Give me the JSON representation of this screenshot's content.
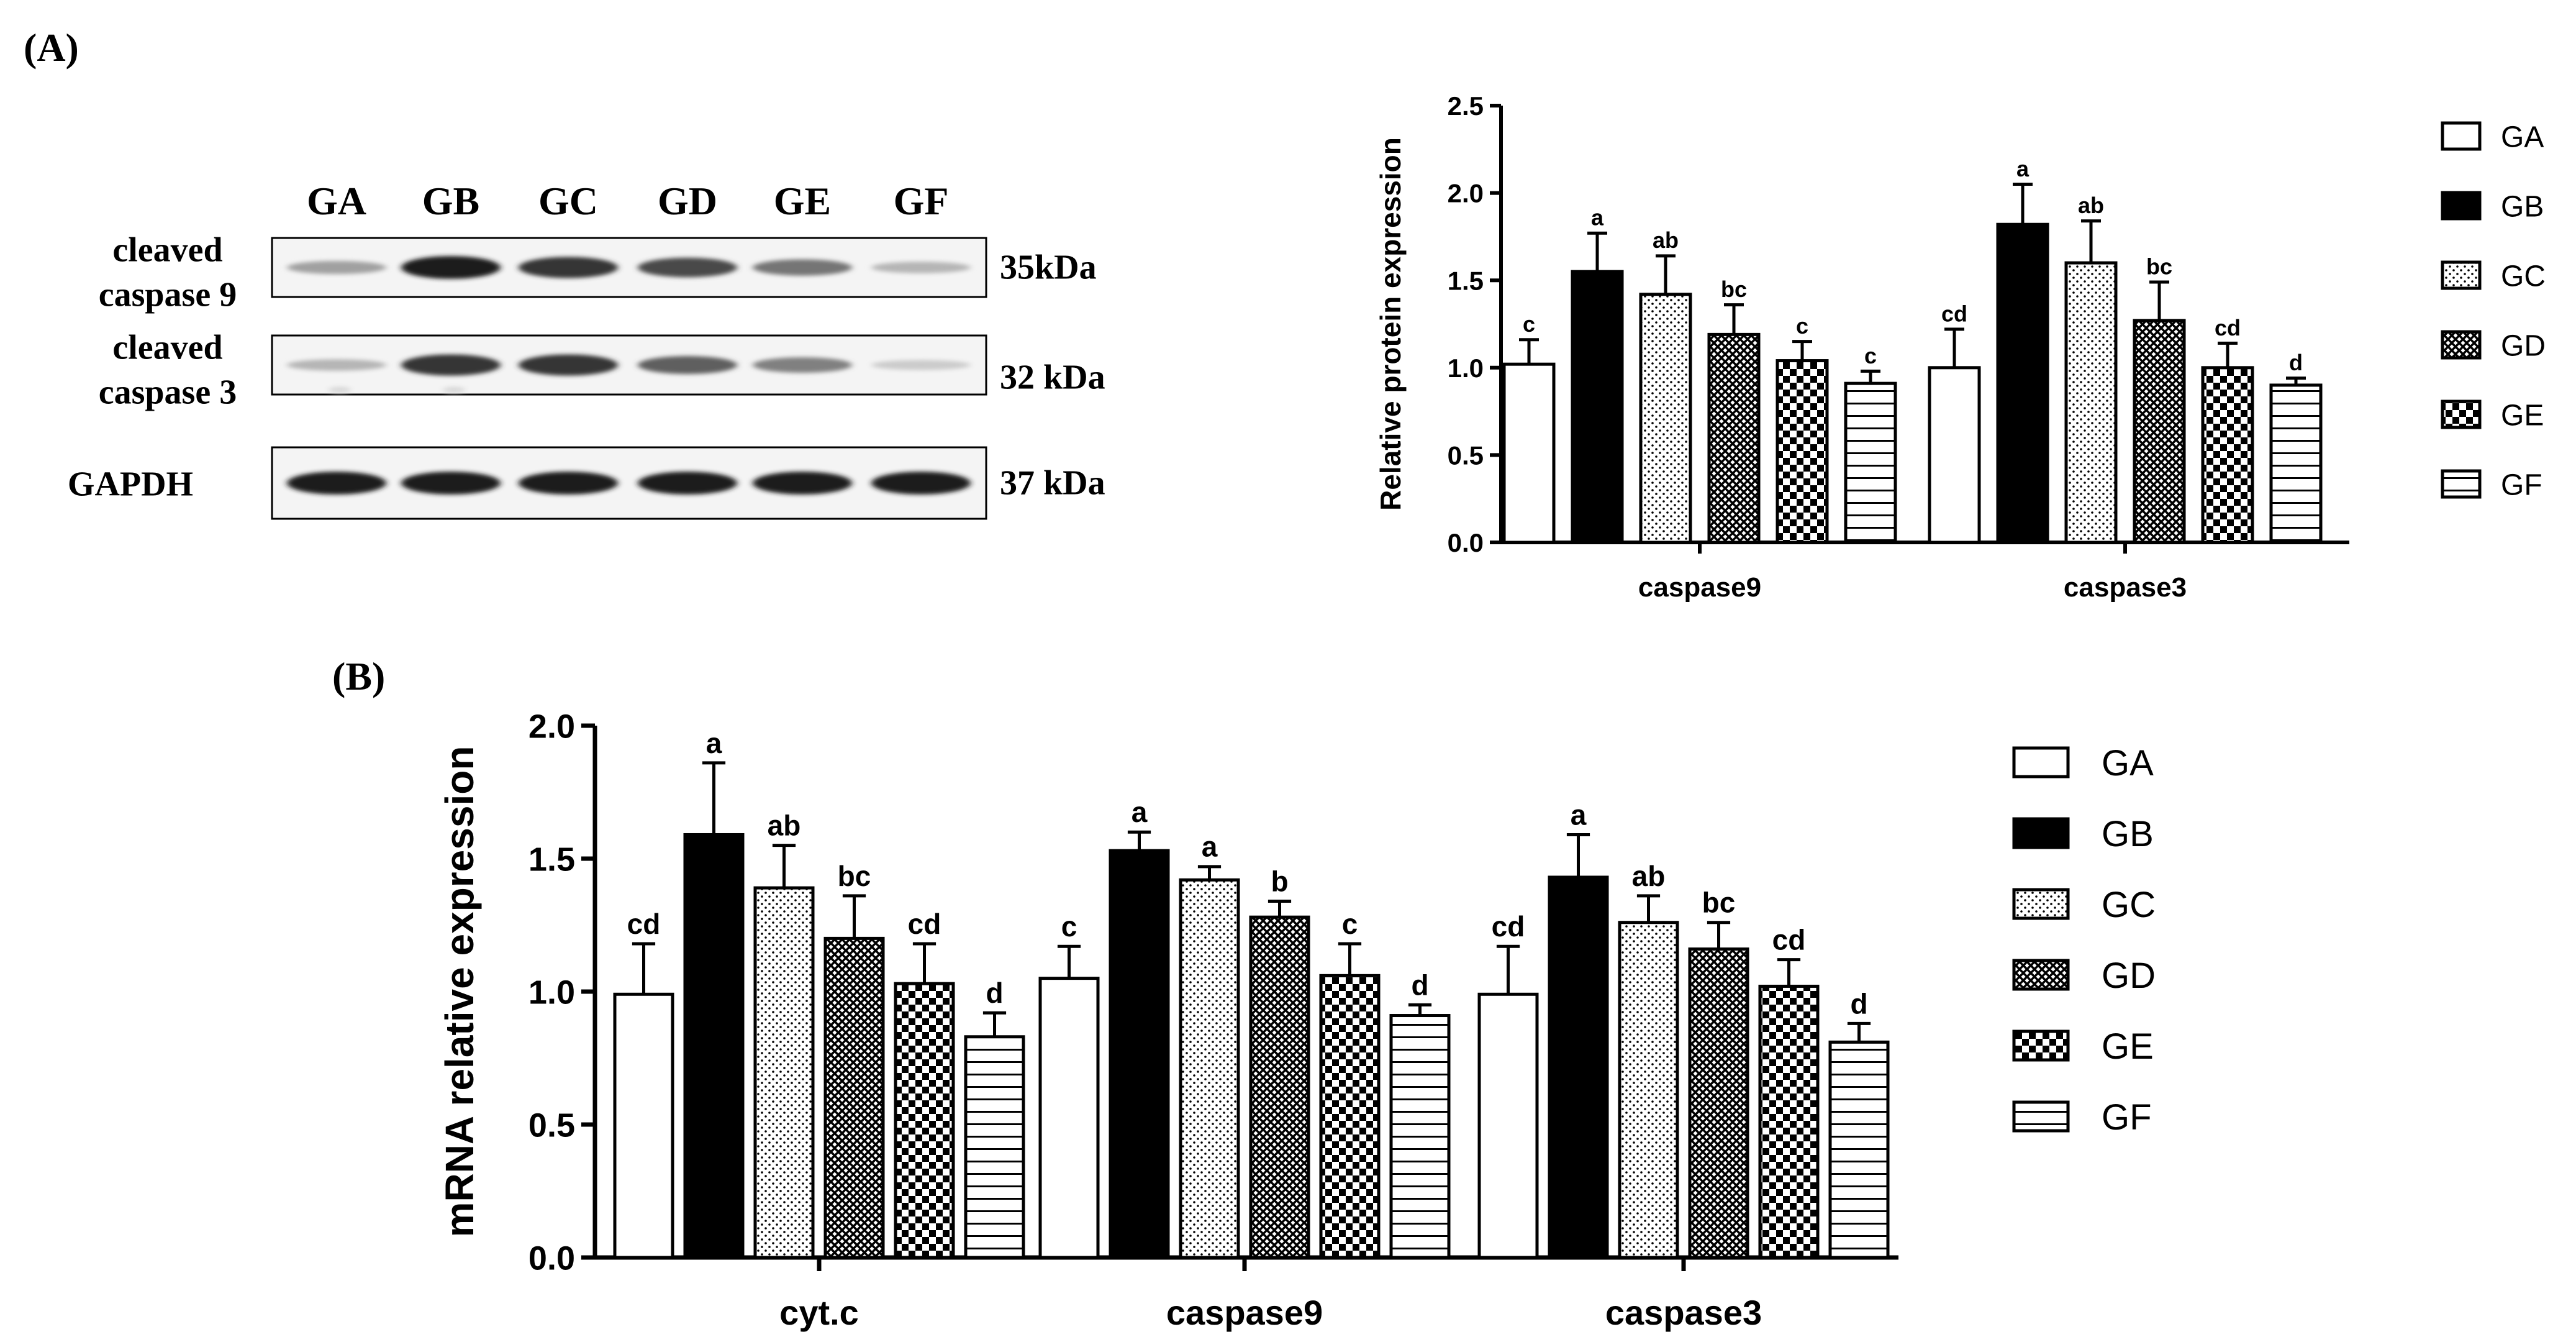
{
  "panel_a_label": "(A)",
  "panel_b_label": "(B)",
  "blot": {
    "lanes": [
      "GA",
      "GB",
      "GC",
      "GD",
      "GE",
      "GF"
    ],
    "rows": [
      {
        "label_lines": [
          "cleaved",
          "caspase 9"
        ],
        "size": "35kDa",
        "intensities": [
          0.35,
          0.95,
          0.85,
          0.75,
          0.55,
          0.25
        ],
        "ghost_lanes": []
      },
      {
        "label_lines": [
          "cleaved",
          "caspase 3"
        ],
        "size": "32 kDa",
        "intensities": [
          0.25,
          0.85,
          0.85,
          0.65,
          0.5,
          0.15
        ],
        "ghost_lanes": [
          0,
          1
        ]
      },
      {
        "label_lines": [
          "GAPDH"
        ],
        "size": "37 kDa",
        "intensities": [
          0.95,
          0.95,
          0.95,
          0.95,
          0.95,
          0.95
        ],
        "ghost_lanes": []
      }
    ]
  },
  "legend": {
    "groups": [
      "GA",
      "GB",
      "GC",
      "GD",
      "GE",
      "GF"
    ],
    "patterns": [
      "open",
      "solid",
      "dots",
      "crosshatch",
      "checker",
      "hlines"
    ]
  },
  "chart_data": [
    {
      "type": "bar",
      "id": "protein",
      "title": "",
      "ylabel": "Relative protein expression",
      "xlabel": "",
      "ylim": [
        0,
        2.5
      ],
      "yticks": [
        0.0,
        0.5,
        1.0,
        1.5,
        2.0,
        2.5
      ],
      "ytick_labels": [
        "0.0",
        "0.5",
        "1.0",
        "1.5",
        "2.0",
        "2.5"
      ],
      "categories": [
        "caspase9",
        "caspase3"
      ],
      "series": [
        {
          "name": "GA",
          "values": [
            1.02,
            1.0
          ],
          "errors": [
            0.14,
            0.22
          ],
          "letters": [
            "c",
            "cd"
          ]
        },
        {
          "name": "GB",
          "values": [
            1.55,
            1.82
          ],
          "errors": [
            0.22,
            0.23
          ],
          "letters": [
            "a",
            "a"
          ]
        },
        {
          "name": "GC",
          "values": [
            1.42,
            1.6
          ],
          "errors": [
            0.22,
            0.24
          ],
          "letters": [
            "ab",
            "ab"
          ]
        },
        {
          "name": "GD",
          "values": [
            1.19,
            1.27
          ],
          "errors": [
            0.17,
            0.22
          ],
          "letters": [
            "bc",
            "bc"
          ]
        },
        {
          "name": "GE",
          "values": [
            1.04,
            1.0
          ],
          "errors": [
            0.11,
            0.14
          ],
          "letters": [
            "c",
            "cd"
          ]
        },
        {
          "name": "GF",
          "values": [
            0.91,
            0.9
          ],
          "errors": [
            0.07,
            0.04
          ],
          "letters": [
            "c",
            "d"
          ]
        }
      ]
    },
    {
      "type": "bar",
      "id": "mrna",
      "title": "",
      "ylabel": "mRNA relative expression",
      "xlabel": "",
      "ylim": [
        0,
        2.0
      ],
      "yticks": [
        0.0,
        0.5,
        1.0,
        1.5,
        2.0
      ],
      "ytick_labels": [
        "0.0",
        "0.5",
        "1.0",
        "1.5",
        "2.0"
      ],
      "categories": [
        "cyt.c",
        "caspase9",
        "caspase3"
      ],
      "series": [
        {
          "name": "GA",
          "values": [
            0.99,
            1.05,
            0.99
          ],
          "errors": [
            0.19,
            0.12,
            0.18
          ],
          "letters": [
            "cd",
            "c",
            "cd"
          ]
        },
        {
          "name": "GB",
          "values": [
            1.59,
            1.53,
            1.43
          ],
          "errors": [
            0.27,
            0.07,
            0.16
          ],
          "letters": [
            "a",
            "a",
            "a"
          ]
        },
        {
          "name": "GC",
          "values": [
            1.39,
            1.42,
            1.26
          ],
          "errors": [
            0.16,
            0.05,
            0.1
          ],
          "letters": [
            "ab",
            "a",
            "ab"
          ]
        },
        {
          "name": "GD",
          "values": [
            1.2,
            1.28,
            1.16
          ],
          "errors": [
            0.16,
            0.06,
            0.1
          ],
          "letters": [
            "bc",
            "b",
            "bc"
          ]
        },
        {
          "name": "GE",
          "values": [
            1.03,
            1.06,
            1.02
          ],
          "errors": [
            0.15,
            0.12,
            0.1
          ],
          "letters": [
            "cd",
            "c",
            "cd"
          ]
        },
        {
          "name": "GF",
          "values": [
            0.83,
            0.91,
            0.81
          ],
          "errors": [
            0.09,
            0.04,
            0.07
          ],
          "letters": [
            "d",
            "d",
            "d"
          ]
        }
      ]
    }
  ]
}
